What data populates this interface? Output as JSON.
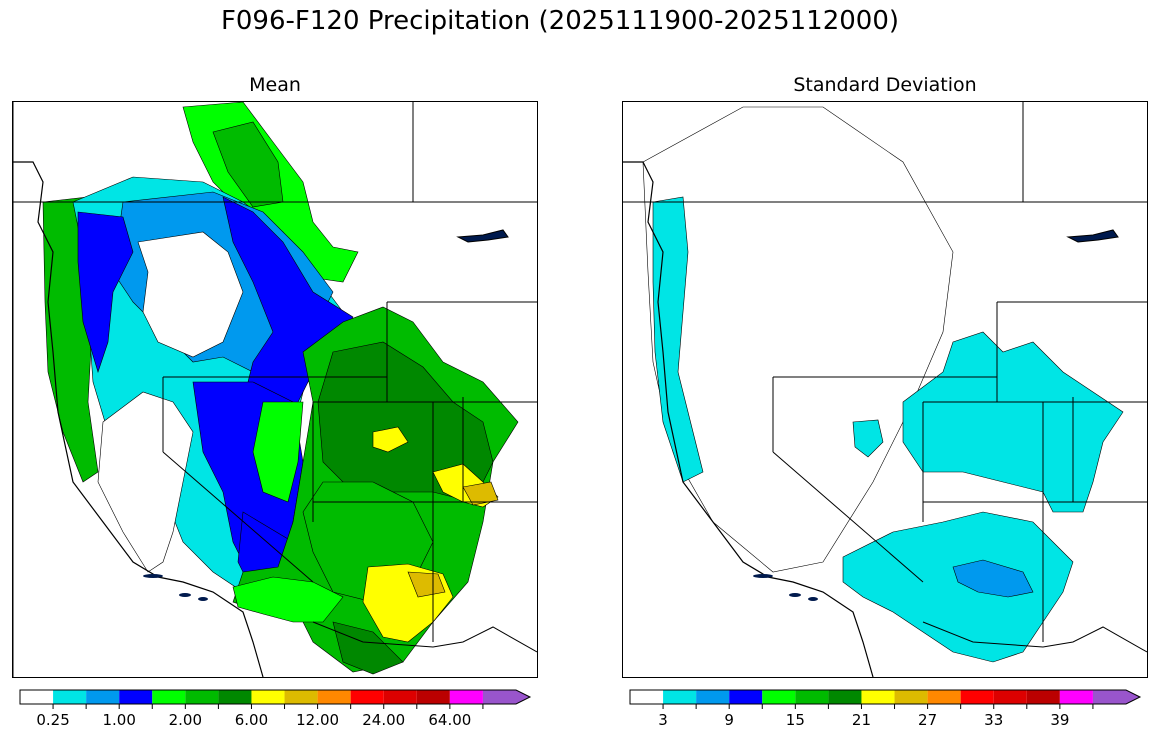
{
  "title": "F096-F120 Precipitation (2025111900-2025112000)",
  "panels": [
    {
      "title": "Mean",
      "colorbar": {
        "colors": [
          "#ffffff",
          "#00e5e5",
          "#0099ee",
          "#0000ff",
          "#00ff00",
          "#00bb00",
          "#008800",
          "#ffff00",
          "#ddbb00",
          "#ff8800",
          "#ff0000",
          "#dd0000",
          "#bb0000",
          "#ff00ff",
          "#9955cc"
        ],
        "tick_labels": [
          "0.25",
          "1.00",
          "2.00",
          "6.00",
          "12.00",
          "24.00",
          "64.00"
        ]
      }
    },
    {
      "title": "Standard Deviation",
      "colorbar": {
        "colors": [
          "#ffffff",
          "#00e5e5",
          "#0099ee",
          "#0000ff",
          "#00ff00",
          "#00bb00",
          "#008800",
          "#ffff00",
          "#ddbb00",
          "#ff8800",
          "#ff0000",
          "#dd0000",
          "#bb0000",
          "#ff00ff",
          "#9955cc"
        ],
        "tick_labels": [
          "3",
          "9",
          "15",
          "21",
          "27",
          "33",
          "39"
        ]
      }
    }
  ]
}
